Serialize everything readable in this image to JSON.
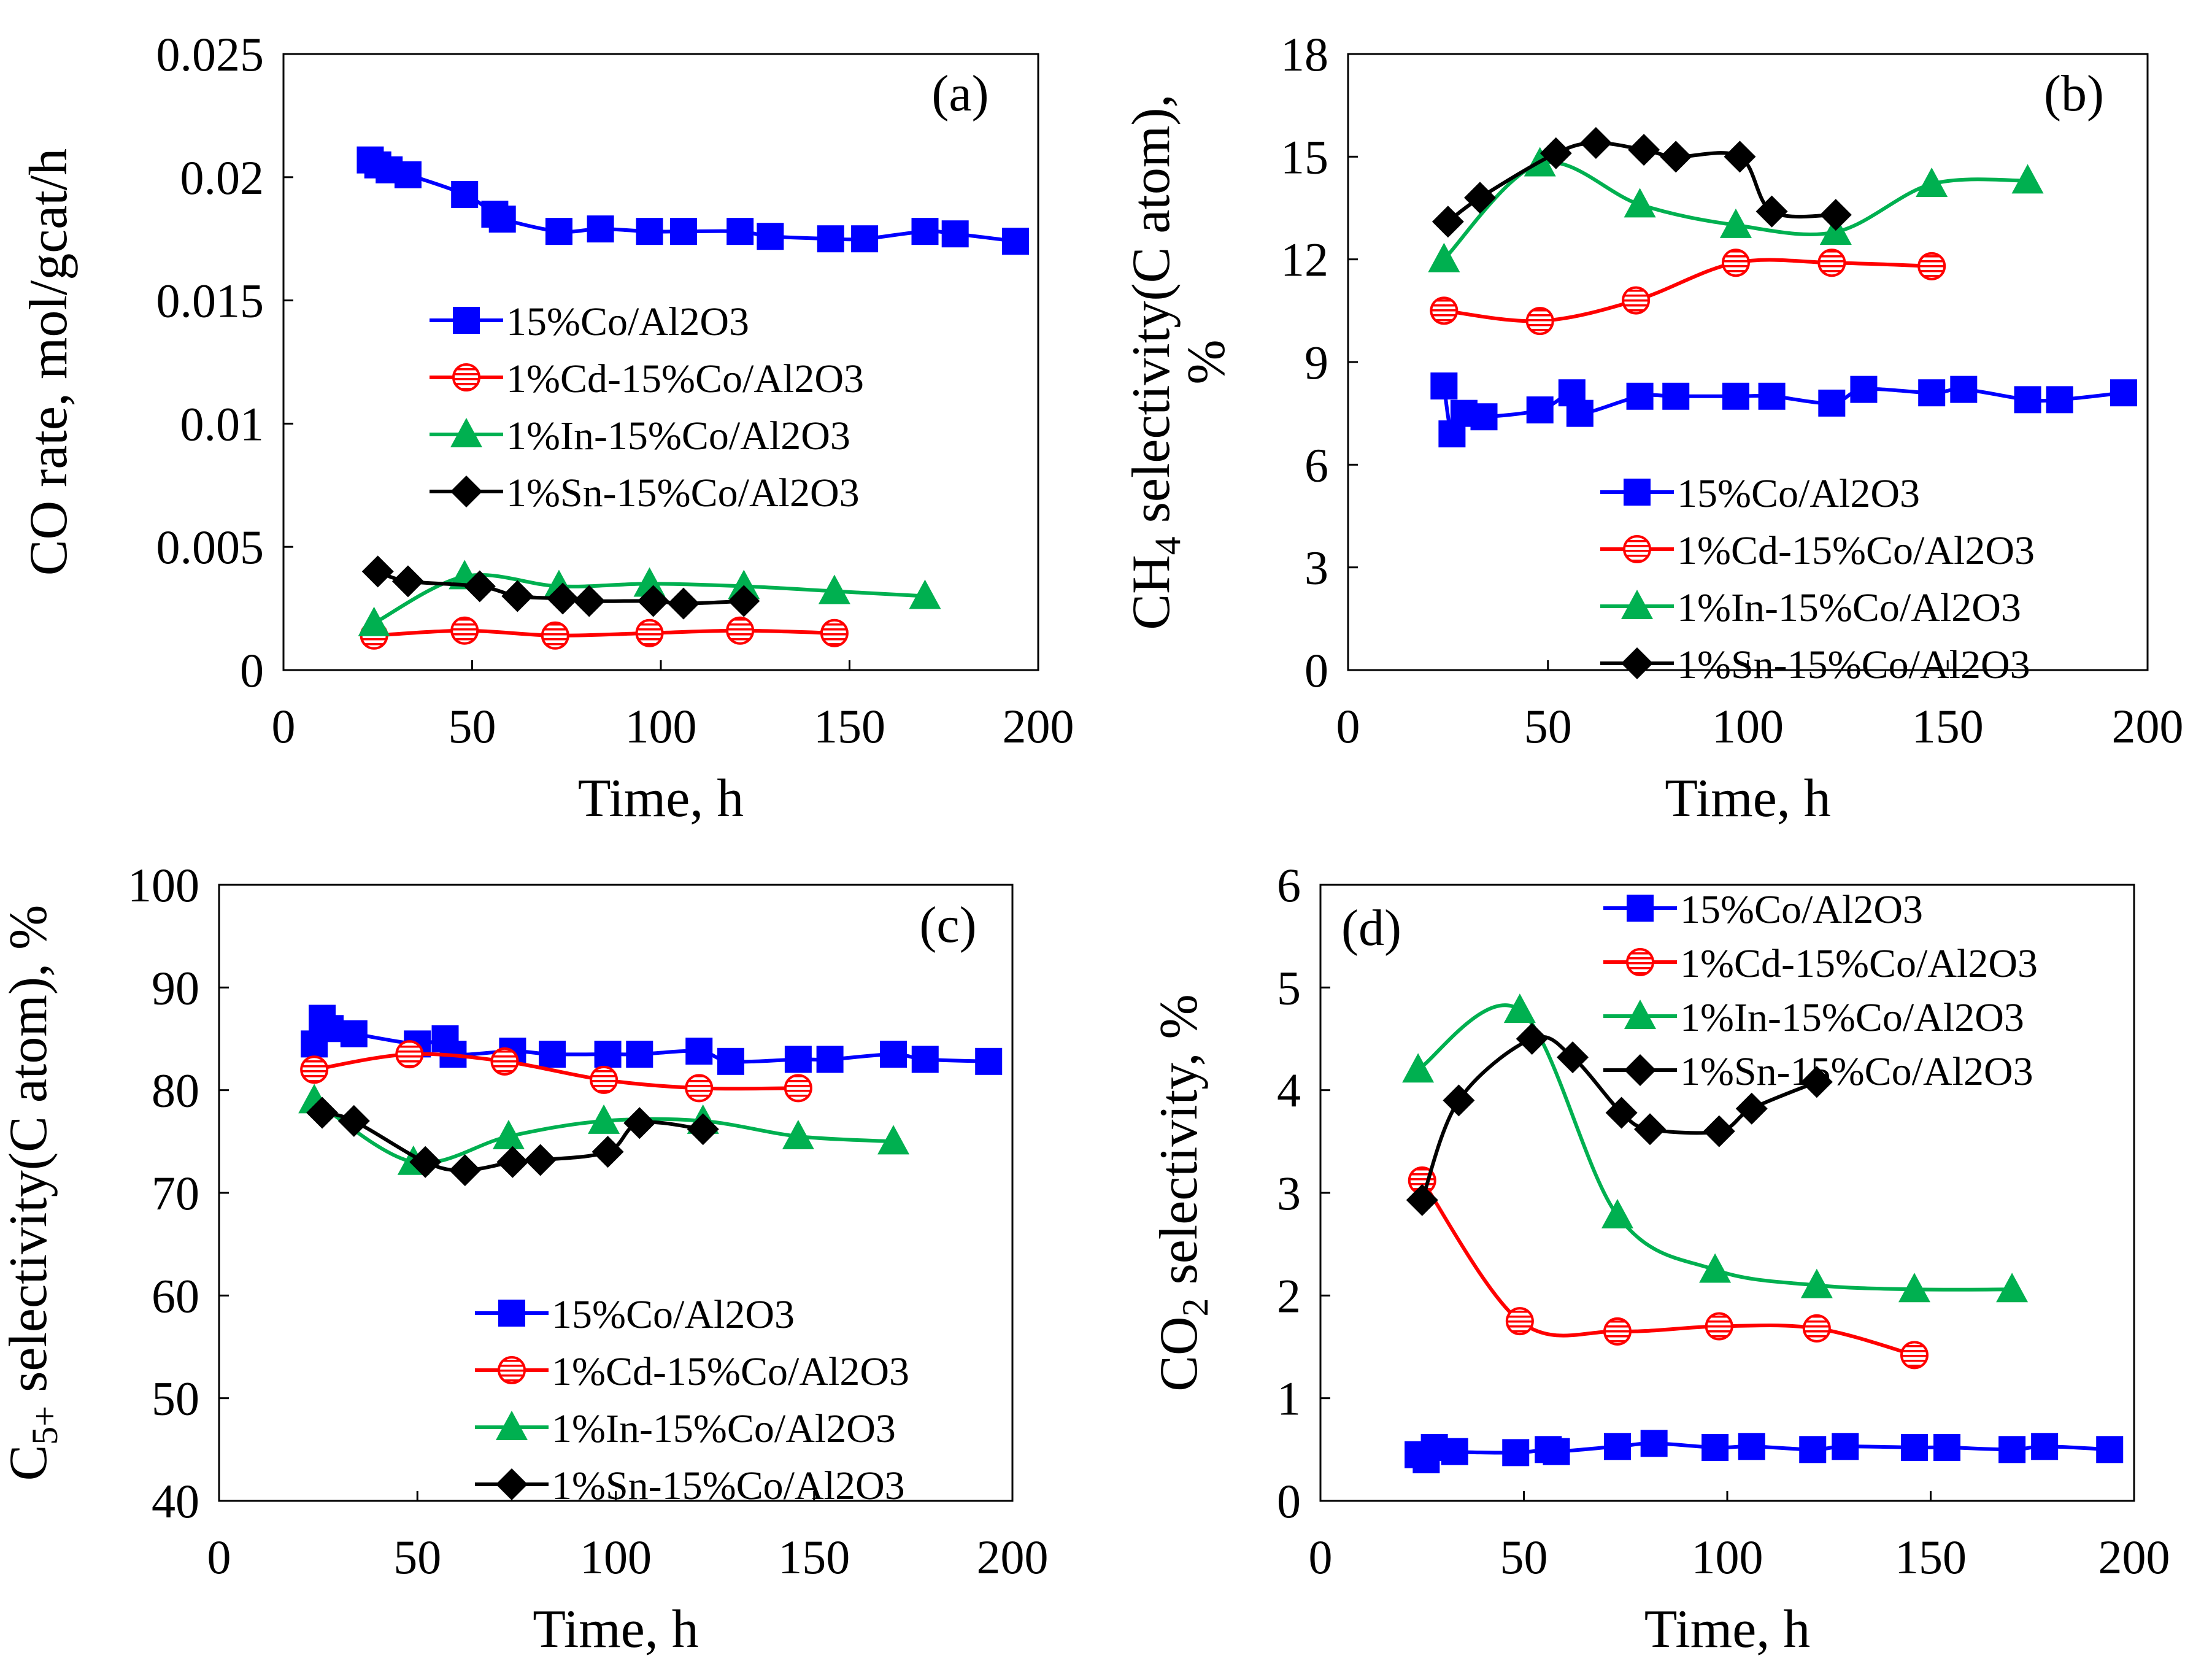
{
  "chart_data": [
    {
      "type": "line",
      "panel_label": "(a)",
      "xlabel": "Time, h",
      "ylabel": "CO rate, mol/gcat/h",
      "xlim": [
        0,
        200
      ],
      "ylim": [
        0,
        0.025
      ],
      "xticks": [
        0,
        50,
        100,
        150,
        200
      ],
      "xtick_labels": [
        "0",
        "50",
        "100",
        "150",
        "200"
      ],
      "yticks": [
        0,
        0.005,
        0.01,
        0.015,
        0.02,
        0.025
      ],
      "ytick_labels": [
        "0",
        "0.005",
        "0.01",
        "0.015",
        "0.02",
        "0.025"
      ],
      "legend_position": "center",
      "series": [
        {
          "name": "15%Co/Al2O3",
          "color": "#0000ff",
          "marker": "square",
          "x": [
            23,
            25,
            28,
            33,
            48,
            56,
            58,
            73,
            84,
            97,
            106,
            121,
            129,
            145,
            154,
            170,
            178,
            194
          ],
          "y": [
            0.0207,
            0.0205,
            0.0203,
            0.0201,
            0.0193,
            0.0185,
            0.0183,
            0.0178,
            0.0179,
            0.0178,
            0.0178,
            0.0178,
            0.0176,
            0.0175,
            0.0175,
            0.0178,
            0.0177,
            0.0174
          ]
        },
        {
          "name": "1%Cd-15%Co/Al2O3",
          "color": "#ff0000",
          "marker": "circle-hatched",
          "x": [
            24,
            48,
            72,
            97,
            121,
            146
          ],
          "y": [
            0.0014,
            0.0016,
            0.0014,
            0.0015,
            0.0016,
            0.0015
          ]
        },
        {
          "name": "1%In-15%Co/Al2O3",
          "color": "#00b050",
          "marker": "triangle",
          "x": [
            24,
            48,
            73,
            97,
            122,
            146,
            170
          ],
          "y": [
            0.0019,
            0.0038,
            0.0034,
            0.0035,
            0.0034,
            0.0032,
            0.003
          ]
        },
        {
          "name": "1%Sn-15%Co/Al2O3",
          "color": "#000000",
          "marker": "diamond",
          "x": [
            25,
            33,
            52,
            62,
            74,
            81,
            98,
            106,
            122
          ],
          "y": [
            0.004,
            0.0036,
            0.0034,
            0.003,
            0.0029,
            0.0028,
            0.0028,
            0.0027,
            0.0028
          ]
        }
      ]
    },
    {
      "type": "line",
      "panel_label": "(b)",
      "xlabel": "Time, h",
      "ylabel": "CH4 selectivity(C  atom), %",
      "ylabel_parts": {
        "pre": "CH",
        "sub": "4",
        "post": " selectivity(C  atom),",
        "line2": "%"
      },
      "xlim": [
        0,
        200
      ],
      "ylim": [
        0,
        18
      ],
      "xticks": [
        0,
        50,
        100,
        150,
        200
      ],
      "xtick_labels": [
        "0",
        "50",
        "100",
        "150",
        "200"
      ],
      "yticks": [
        0,
        3,
        6,
        9,
        12,
        15,
        18
      ],
      "ytick_labels": [
        "0",
        "3",
        "6",
        "9",
        "12",
        "15",
        "18"
      ],
      "legend_position": "bottom-center",
      "series": [
        {
          "name": "15%Co/Al2O3",
          "color": "#0000ff",
          "marker": "square",
          "x": [
            24,
            26,
            29,
            34,
            48,
            56,
            58,
            73,
            82,
            97,
            106,
            121,
            129,
            146,
            154,
            170,
            178,
            194
          ],
          "y": [
            8.3,
            6.9,
            7.5,
            7.4,
            7.6,
            8.1,
            7.5,
            8.0,
            8.0,
            8.0,
            8.0,
            7.8,
            8.2,
            8.1,
            8.2,
            7.9,
            7.9,
            8.1
          ]
        },
        {
          "name": "1%Cd-15%Co/Al2O3",
          "color": "#ff0000",
          "marker": "circle-hatched",
          "x": [
            24,
            48,
            72,
            97,
            121,
            146
          ],
          "y": [
            10.5,
            10.2,
            10.8,
            11.9,
            11.9,
            11.8
          ]
        },
        {
          "name": "1%In-15%Co/Al2O3",
          "color": "#00b050",
          "marker": "triangle",
          "x": [
            24,
            48,
            73,
            97,
            122,
            146,
            170
          ],
          "y": [
            12.0,
            14.8,
            13.6,
            13.0,
            12.8,
            14.2,
            14.3
          ]
        },
        {
          "name": "1%Sn-15%Co/Al2O3",
          "color": "#000000",
          "marker": "diamond",
          "x": [
            25,
            33,
            52,
            62,
            74,
            82,
            98,
            106,
            122
          ],
          "y": [
            13.1,
            13.8,
            15.1,
            15.4,
            15.2,
            15.0,
            15.0,
            13.4,
            13.3
          ]
        }
      ]
    },
    {
      "type": "line",
      "panel_label": "(c)",
      "xlabel": "Time, h",
      "ylabel": "C5+ selectivity(C  atom), %",
      "ylabel_parts": {
        "pre": "C",
        "sub": "5+",
        "post": " selectivity(C  atom), %"
      },
      "xlim": [
        0,
        200
      ],
      "ylim": [
        40,
        100
      ],
      "xticks": [
        0,
        50,
        100,
        150,
        200
      ],
      "xtick_labels": [
        "0",
        "50",
        "100",
        "150",
        "200"
      ],
      "yticks": [
        40,
        50,
        60,
        70,
        80,
        90,
        100
      ],
      "ytick_labels": [
        "40",
        "50",
        "60",
        "70",
        "80",
        "90",
        "100"
      ],
      "legend_position": "bottom-center",
      "series": [
        {
          "name": "15%Co/Al2O3",
          "color": "#0000ff",
          "marker": "square",
          "x": [
            24,
            26,
            28,
            34,
            50,
            57,
            59,
            74,
            84,
            98,
            106,
            121,
            129,
            146,
            154,
            170,
            178,
            194
          ],
          "y": [
            84.5,
            87.0,
            86.0,
            85.5,
            84.5,
            85.0,
            83.5,
            83.8,
            83.5,
            83.5,
            83.5,
            83.8,
            82.8,
            83.0,
            83.0,
            83.5,
            83.0,
            82.8
          ]
        },
        {
          "name": "1%Cd-15%Co/Al2O3",
          "color": "#ff0000",
          "marker": "circle-hatched",
          "x": [
            24,
            48,
            72,
            97,
            121,
            146
          ],
          "y": [
            82.0,
            83.5,
            82.8,
            81.0,
            80.2,
            80.2
          ]
        },
        {
          "name": "1%In-15%Co/Al2O3",
          "color": "#00b050",
          "marker": "triangle",
          "x": [
            24,
            49,
            73,
            97,
            122,
            146,
            170
          ],
          "y": [
            79.0,
            73.0,
            75.5,
            77.0,
            77.0,
            75.5,
            75.0
          ]
        },
        {
          "name": "1%Sn-15%Co/Al2O3",
          "color": "#000000",
          "marker": "diamond",
          "x": [
            26,
            34,
            52,
            62,
            74,
            81,
            98,
            106,
            122
          ],
          "y": [
            77.8,
            77.0,
            73.0,
            72.2,
            73.0,
            73.2,
            74.0,
            76.8,
            76.2
          ]
        }
      ]
    },
    {
      "type": "line",
      "panel_label": "(d)",
      "xlabel": "Time, h",
      "ylabel": "CO2 selectivity, %",
      "ylabel_parts": {
        "pre": "CO",
        "sub": "2",
        "post": " selectivity,  %"
      },
      "xlim": [
        0,
        200
      ],
      "ylim": [
        0,
        6
      ],
      "xticks": [
        0,
        50,
        100,
        150,
        200
      ],
      "xtick_labels": [
        "0",
        "50",
        "100",
        "150",
        "200"
      ],
      "yticks": [
        0,
        1,
        2,
        3,
        4,
        5,
        6
      ],
      "ytick_labels": [
        "0",
        "1",
        "2",
        "3",
        "4",
        "5",
        "6"
      ],
      "legend_position": "top-right",
      "series": [
        {
          "name": "15%Co/Al2O3",
          "color": "#0000ff",
          "marker": "square",
          "x": [
            24,
            26,
            28,
            33,
            48,
            56,
            58,
            73,
            82,
            97,
            106,
            121,
            129,
            146,
            154,
            170,
            178,
            194
          ],
          "y": [
            0.45,
            0.4,
            0.52,
            0.48,
            0.47,
            0.5,
            0.48,
            0.53,
            0.56,
            0.52,
            0.53,
            0.5,
            0.53,
            0.52,
            0.52,
            0.5,
            0.53,
            0.5
          ]
        },
        {
          "name": "1%Cd-15%Co/Al2O3",
          "color": "#ff0000",
          "marker": "circle-hatched",
          "x": [
            25,
            49,
            73,
            98,
            122,
            146
          ],
          "y": [
            3.12,
            1.75,
            1.65,
            1.7,
            1.68,
            1.42
          ]
        },
        {
          "name": "1%In-15%Co/Al2O3",
          "color": "#00b050",
          "marker": "triangle",
          "x": [
            24,
            49,
            73,
            97,
            122,
            146,
            170
          ],
          "y": [
            4.2,
            4.78,
            2.78,
            2.25,
            2.1,
            2.06,
            2.06
          ]
        },
        {
          "name": "1%Sn-15%Co/Al2O3",
          "color": "#000000",
          "marker": "diamond",
          "x": [
            25,
            34,
            52,
            62,
            74,
            81,
            98,
            106,
            122
          ],
          "y": [
            2.93,
            3.9,
            4.5,
            4.32,
            3.78,
            3.62,
            3.6,
            3.82,
            4.08
          ]
        }
      ]
    }
  ]
}
